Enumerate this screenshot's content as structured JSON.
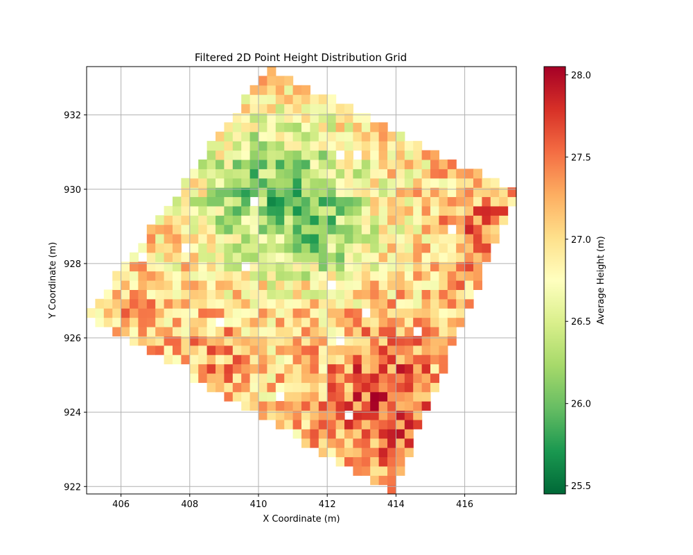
{
  "chart_data": {
    "type": "heatmap",
    "title": "Filtered 2D Point Height Distribution Grid",
    "xlabel": "X Coordinate (m)",
    "ylabel": "Y Coordinate (m)",
    "colorbar_label": "Average Height (m)",
    "colormap": "RdYlGn_r",
    "xlim": [
      405,
      417.5
    ],
    "ylim": [
      921.8,
      933.3
    ],
    "clim": [
      25.45,
      28.05
    ],
    "x_ticks": [
      "406",
      "408",
      "410",
      "412",
      "414",
      "416"
    ],
    "y_ticks": [
      "922",
      "924",
      "926",
      "928",
      "930",
      "932"
    ],
    "colorbar_ticks": [
      "25.5",
      "26.0",
      "26.5",
      "27.0",
      "27.5",
      "28.0"
    ],
    "grid": true,
    "cell_size": 0.25,
    "footprint_corners": [
      [
        410.3,
        933.3
      ],
      [
        417.5,
        929.9
      ],
      [
        413.9,
        921.8
      ],
      [
        405.0,
        926.6
      ]
    ],
    "mean_height": 27.0,
    "trends": [
      {
        "region": "northwest-center",
        "heights": "low (about 25.6 - 26.5)"
      },
      {
        "region": "south and east edges",
        "heights": "high (about 27.5 - 28.0)"
      }
    ]
  },
  "colors": {
    "background": "#ffffff",
    "grid": "#b0b0b0",
    "scale_low": "#006837",
    "scale_mid": "#ffffbf",
    "scale_high": "#a50026"
  }
}
